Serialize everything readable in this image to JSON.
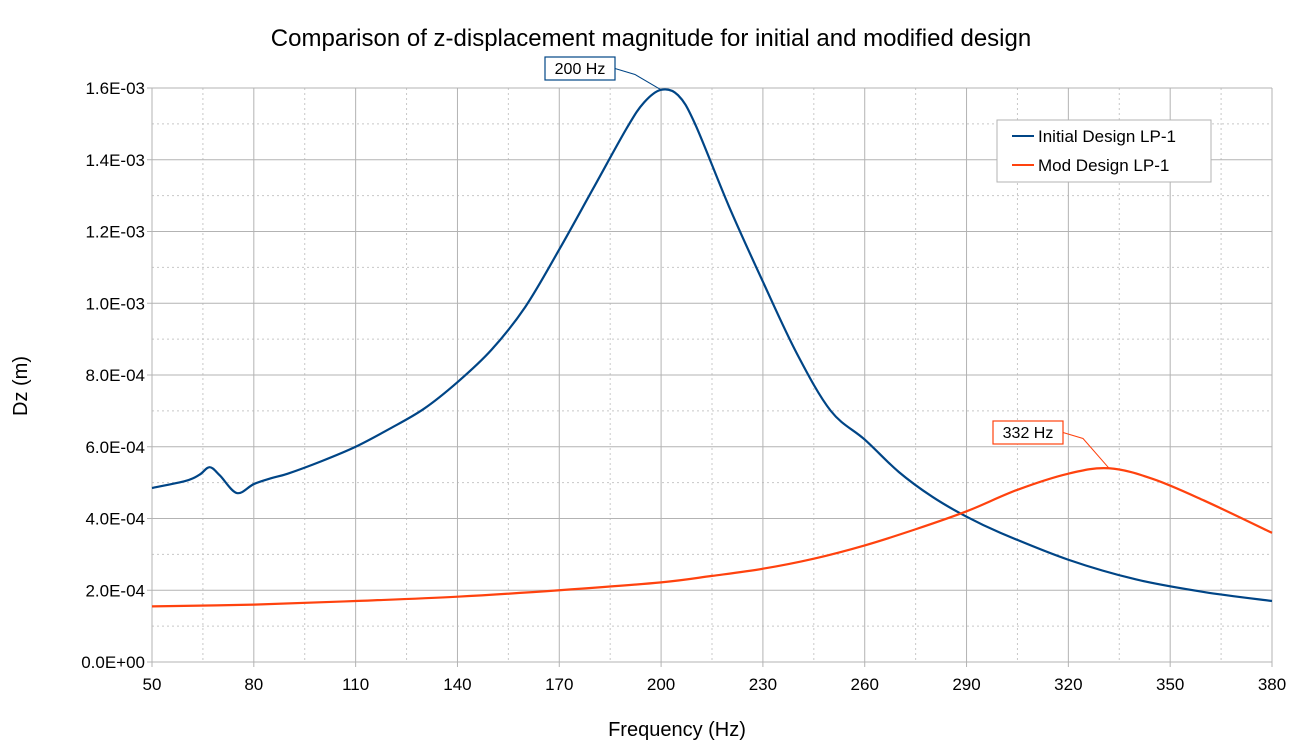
{
  "chart_data": {
    "type": "line",
    "title": "Comparison of z-displacement magnitude for initial and modified design",
    "xlabel": "Frequency (Hz)",
    "ylabel": "Dz (m)",
    "xlim": [
      50,
      380
    ],
    "ylim": [
      0,
      0.0016
    ],
    "x_ticks": [
      50,
      80,
      110,
      140,
      170,
      200,
      230,
      260,
      290,
      320,
      350,
      380
    ],
    "x_tick_labels": [
      "50",
      "80",
      "110",
      "140",
      "170",
      "200",
      "230",
      "260",
      "290",
      "320",
      "350",
      "380"
    ],
    "y_ticks": [
      0,
      0.0002,
      0.0004,
      0.0006,
      0.0008,
      0.001,
      0.0012,
      0.0014,
      0.0016
    ],
    "y_tick_labels": [
      "0.0E+00",
      "2.0E-04",
      "4.0E-04",
      "6.0E-04",
      "8.0E-04",
      "1.0E-03",
      "1.2E-03",
      "1.4E-03",
      "1.6E-03"
    ],
    "grid": {
      "major": true,
      "minor": true
    },
    "legend_position": "top-right",
    "series": [
      {
        "name": "Initial Design LP-1",
        "color": "#004586",
        "x": [
          50,
          60,
          64,
          67,
          70,
          75,
          80,
          85,
          90,
          100,
          110,
          120,
          130,
          140,
          150,
          160,
          170,
          180,
          190,
          195,
          200,
          205,
          210,
          220,
          230,
          240,
          250,
          260,
          270,
          280,
          290,
          300,
          320,
          340,
          360,
          380
        ],
        "y": [
          0.000485,
          0.000505,
          0.000522,
          0.000543,
          0.00052,
          0.000471,
          0.000496,
          0.000512,
          0.000525,
          0.00056,
          0.0006,
          0.00065,
          0.000705,
          0.00078,
          0.00087,
          0.00099,
          0.00115,
          0.00132,
          0.00149,
          0.00156,
          0.001595,
          0.00158,
          0.0015,
          0.00127,
          0.00106,
          0.00086,
          0.0007,
          0.00062,
          0.00053,
          0.00046,
          0.000405,
          0.00036,
          0.000285,
          0.00023,
          0.000195,
          0.00017
        ]
      },
      {
        "name": "Mod Design LP-1",
        "color": "#ff420e",
        "x": [
          50,
          80,
          110,
          140,
          170,
          200,
          215,
          230,
          245,
          260,
          275,
          290,
          305,
          320,
          332,
          345,
          360,
          380
        ],
        "y": [
          0.000155,
          0.00016,
          0.00017,
          0.000182,
          0.0002,
          0.000222,
          0.00024,
          0.00026,
          0.000288,
          0.000325,
          0.00037,
          0.00042,
          0.00048,
          0.000525,
          0.00054,
          0.00051,
          0.00045,
          0.00036
        ]
      }
    ],
    "annotations": [
      {
        "text": "200 Hz",
        "x": 200,
        "y": 0.001595,
        "color": "#004586"
      },
      {
        "text": "332 Hz",
        "x": 332,
        "y": 0.00054,
        "color": "#ff420e"
      }
    ]
  }
}
